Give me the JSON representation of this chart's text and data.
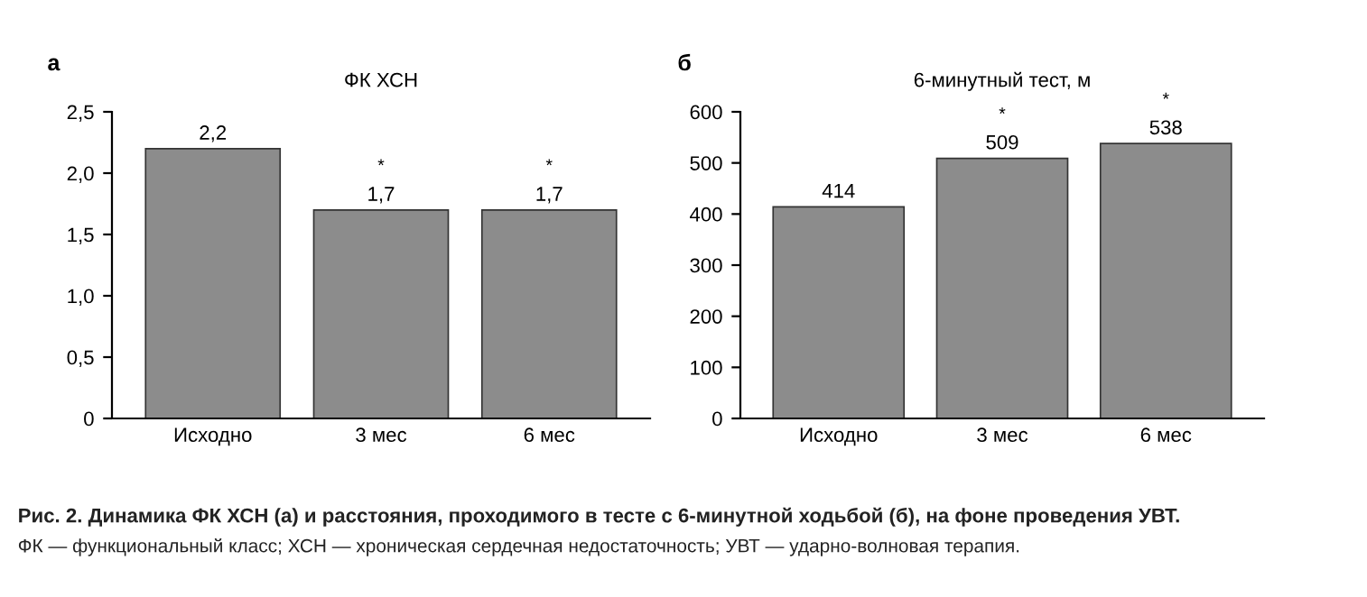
{
  "chart_data": [
    {
      "type": "bar",
      "title": "ФК ХСН",
      "categories": [
        "Исходно",
        "3 мес",
        "6 мес"
      ],
      "values": [
        2.2,
        1.7,
        1.7
      ],
      "color": "#8c8c8c",
      "value_labels": [
        "2,2",
        "1,7",
        "1,7"
      ],
      "ylim": [
        0,
        2.5
      ],
      "yticks": [
        0,
        {
          "value": 0.5,
          "label": "0,5"
        },
        {
          "value": 1.0,
          "label": "1,0"
        },
        {
          "value": 1.5,
          "label": "1,5"
        },
        {
          "value": 2.0,
          "label": "2,0"
        },
        {
          "value": 2.5,
          "label": "2,5"
        }
      ],
      "grid": false,
      "annotations": [
        "а",
        {
          "text": "*",
          "x": "3 мес",
          "y": 1.7
        },
        {
          "text": "*",
          "x": "6 мес",
          "y": 1.7
        },
        "Рис. 2. Динамика ФК ХСН (а) и расстояния, проходимого в тесте с 6-минутной ходьбой (б), на фоне проведения УВТ.",
        "ФК — функциональный класс; ХСН — хроническая сердечная недостаточность; УВТ — ударно-волновая терапия."
      ]
    },
    {
      "type": "bar",
      "title": "6-минутный тест, м",
      "categories": [
        "Исходно",
        "3 мес",
        "6 мес"
      ],
      "values": [
        414,
        509,
        538
      ],
      "color": "#8c8c8c",
      "data_labels": true,
      "ylim": [
        0,
        600
      ],
      "yticks": [
        0,
        100,
        200,
        300,
        400,
        500,
        600
      ],
      "grid": false,
      "annotations": [
        "б",
        {
          "text": "*",
          "x": "3 мес",
          "y": 509
        },
        {
          "text": "*",
          "x": "6 мес",
          "y": 538
        }
      ]
    }
  ]
}
